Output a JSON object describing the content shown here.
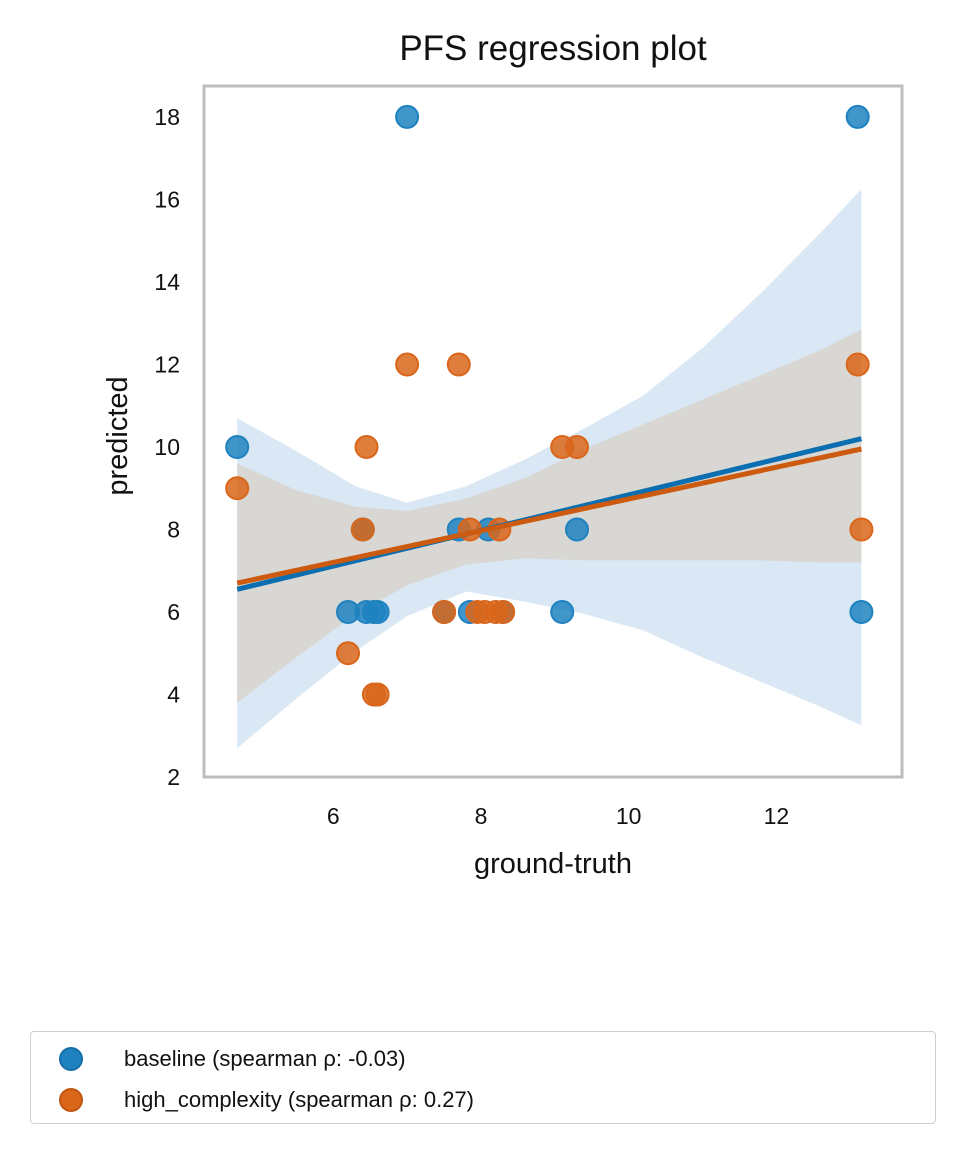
{
  "chart_data": {
    "type": "scatter",
    "title": "PFS regression plot",
    "xlabel": "ground-truth",
    "ylabel": "predicted",
    "xlim": [
      4.25,
      13.7
    ],
    "ylim": [
      2,
      18.75
    ],
    "xticks": [
      6,
      8,
      10,
      12
    ],
    "yticks": [
      2,
      4,
      6,
      8,
      10,
      12,
      14,
      16,
      18
    ],
    "grid": false,
    "legend_position": "bottom, outside plot",
    "series": [
      {
        "name": "baseline (spearman ρ: -0.03)",
        "color": "#1f82c0",
        "points": [
          {
            "x": 4.7,
            "y": 10
          },
          {
            "x": 6.2,
            "y": 6
          },
          {
            "x": 6.4,
            "y": 8
          },
          {
            "x": 6.45,
            "y": 6
          },
          {
            "x": 6.55,
            "y": 6
          },
          {
            "x": 6.6,
            "y": 6
          },
          {
            "x": 7.0,
            "y": 18
          },
          {
            "x": 7.5,
            "y": 6
          },
          {
            "x": 7.7,
            "y": 8
          },
          {
            "x": 7.85,
            "y": 6
          },
          {
            "x": 8.1,
            "y": 8
          },
          {
            "x": 8.3,
            "y": 6
          },
          {
            "x": 9.1,
            "y": 6
          },
          {
            "x": 9.3,
            "y": 8
          },
          {
            "x": 13.1,
            "y": 18
          },
          {
            "x": 13.15,
            "y": 6
          }
        ],
        "fit": {
          "x": [
            4.7,
            13.15
          ],
          "y": [
            6.55,
            10.2
          ]
        },
        "ci_band": {
          "x": [
            4.7,
            5.5,
            6.3,
            7.0,
            7.8,
            8.6,
            9.4,
            10.2,
            11.0,
            11.8,
            12.6,
            13.15
          ],
          "lower": [
            2.7,
            3.9,
            5.05,
            5.9,
            6.5,
            6.25,
            5.95,
            5.55,
            4.9,
            4.3,
            3.7,
            3.25
          ],
          "upper": [
            10.7,
            9.9,
            9.05,
            8.65,
            9.05,
            9.7,
            10.45,
            11.25,
            12.4,
            13.75,
            15.2,
            16.25
          ]
        }
      },
      {
        "name": "high_complexity (spearman ρ: 0.27)",
        "color": "#d9661a",
        "points": [
          {
            "x": 4.7,
            "y": 9
          },
          {
            "x": 6.2,
            "y": 5
          },
          {
            "x": 6.4,
            "y": 8
          },
          {
            "x": 6.45,
            "y": 10
          },
          {
            "x": 6.55,
            "y": 4
          },
          {
            "x": 6.6,
            "y": 4
          },
          {
            "x": 7.0,
            "y": 12
          },
          {
            "x": 7.5,
            "y": 6
          },
          {
            "x": 7.7,
            "y": 12
          },
          {
            "x": 7.85,
            "y": 8
          },
          {
            "x": 7.95,
            "y": 6
          },
          {
            "x": 8.05,
            "y": 6
          },
          {
            "x": 8.2,
            "y": 6
          },
          {
            "x": 8.25,
            "y": 8
          },
          {
            "x": 8.3,
            "y": 6
          },
          {
            "x": 9.1,
            "y": 10
          },
          {
            "x": 9.3,
            "y": 10
          },
          {
            "x": 13.1,
            "y": 12
          },
          {
            "x": 13.15,
            "y": 8
          }
        ],
        "fit": {
          "x": [
            4.7,
            13.15
          ],
          "y": [
            6.7,
            9.95
          ]
        },
        "ci_band": {
          "x": [
            4.7,
            5.5,
            6.3,
            7.0,
            7.8,
            8.6,
            9.4,
            10.2,
            11.0,
            11.8,
            12.6,
            13.15
          ],
          "lower": [
            3.8,
            4.9,
            5.95,
            6.65,
            7.15,
            7.3,
            7.25,
            7.25,
            7.25,
            7.25,
            7.2,
            7.2
          ],
          "upper": [
            9.6,
            8.95,
            8.55,
            8.45,
            8.75,
            9.25,
            9.95,
            10.55,
            11.15,
            11.75,
            12.35,
            12.85
          ]
        }
      }
    ]
  },
  "colors": {
    "baseline_band": "#d9e8f4",
    "high_complexity_band": "#d8d3cc",
    "axes_frame": "#bdbdbd"
  }
}
